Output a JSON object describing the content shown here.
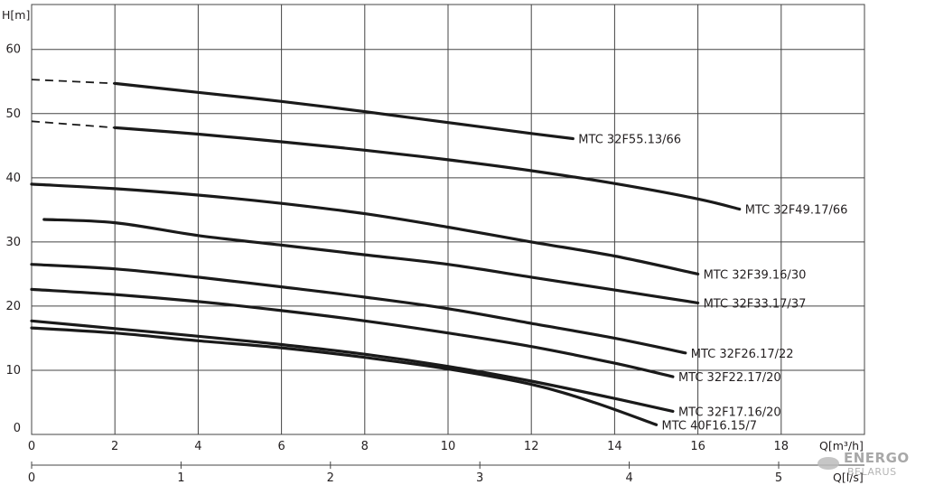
{
  "chart_data": {
    "type": "line",
    "ylabel": "H[m]",
    "xlabel": "Q[m³/h]",
    "x2label": "Q[l/s]",
    "xlim": [
      0,
      20
    ],
    "ylim": [
      0,
      67
    ],
    "x2lim": [
      0,
      5.56
    ],
    "xticks": [
      0,
      2,
      4,
      6,
      8,
      10,
      12,
      14,
      16,
      18
    ],
    "yticks": [
      0,
      10,
      20,
      30,
      40,
      50,
      60
    ],
    "x2ticks": [
      0,
      1,
      2,
      3,
      4,
      5
    ],
    "grid": true,
    "series": [
      {
        "name": "MTC 32F55.13/66",
        "dashed_to": 2,
        "points": [
          [
            0,
            55.3
          ],
          [
            2,
            54.7
          ],
          [
            4,
            53.3
          ],
          [
            6,
            51.9
          ],
          [
            8,
            50.3
          ],
          [
            10,
            48.6
          ],
          [
            12,
            46.9
          ],
          [
            13,
            46.1
          ]
        ]
      },
      {
        "name": "MTC 32F49.17/66",
        "dashed_to": 2,
        "points": [
          [
            0,
            48.8
          ],
          [
            2,
            47.8
          ],
          [
            4,
            46.8
          ],
          [
            6,
            45.6
          ],
          [
            8,
            44.3
          ],
          [
            10,
            42.8
          ],
          [
            12,
            41.1
          ],
          [
            14,
            39.1
          ],
          [
            16,
            36.7
          ],
          [
            17,
            35.1
          ]
        ]
      },
      {
        "name": "MTC 32F39.16/30",
        "points": [
          [
            0,
            39.0
          ],
          [
            2,
            38.3
          ],
          [
            4,
            37.3
          ],
          [
            6,
            36.0
          ],
          [
            8,
            34.4
          ],
          [
            10,
            32.3
          ],
          [
            12,
            30.0
          ],
          [
            14,
            27.8
          ],
          [
            16,
            25.0
          ]
        ]
      },
      {
        "name": "MTC 32F33.17/37",
        "points": [
          [
            0.3,
            33.5
          ],
          [
            2,
            33.0
          ],
          [
            4,
            31.0
          ],
          [
            6,
            29.5
          ],
          [
            8,
            28.0
          ],
          [
            10,
            26.5
          ],
          [
            12,
            24.5
          ],
          [
            14,
            22.5
          ],
          [
            16,
            20.5
          ]
        ]
      },
      {
        "name": "MTC 32F26.17/22",
        "points": [
          [
            0,
            26.5
          ],
          [
            2,
            25.8
          ],
          [
            4,
            24.5
          ],
          [
            6,
            23.0
          ],
          [
            8,
            21.4
          ],
          [
            10,
            19.6
          ],
          [
            12,
            17.3
          ],
          [
            14,
            15.0
          ],
          [
            15.7,
            12.7
          ]
        ]
      },
      {
        "name": "MTC 32F22.17/20",
        "points": [
          [
            0,
            22.6
          ],
          [
            2,
            21.8
          ],
          [
            4,
            20.7
          ],
          [
            6,
            19.3
          ],
          [
            8,
            17.7
          ],
          [
            10,
            15.8
          ],
          [
            12,
            13.7
          ],
          [
            14,
            11.1
          ],
          [
            15.4,
            9.0
          ]
        ]
      },
      {
        "name": "MTC 32F17.16/20",
        "points": [
          [
            0,
            17.7
          ],
          [
            2,
            16.5
          ],
          [
            4,
            15.3
          ],
          [
            6,
            14.0
          ],
          [
            8,
            12.5
          ],
          [
            10,
            10.6
          ],
          [
            12,
            8.3
          ],
          [
            14,
            5.6
          ],
          [
            15.4,
            3.6
          ]
        ]
      },
      {
        "name": "MTC 40F16.15/7",
        "points": [
          [
            0,
            16.6
          ],
          [
            2,
            15.8
          ],
          [
            4,
            14.6
          ],
          [
            6,
            13.5
          ],
          [
            8,
            12.0
          ],
          [
            10,
            10.2
          ],
          [
            12,
            7.8
          ],
          [
            13.5,
            5.0
          ],
          [
            15,
            1.5
          ]
        ]
      }
    ],
    "labels_at": [
      {
        "text": "MTC 32F55.13/66",
        "x": 13.0,
        "y": 46.1
      },
      {
        "text": "MTC 32F49.17/66",
        "x": 17.0,
        "y": 35.1
      },
      {
        "text": "MTC 32F39.16/30",
        "x": 16.0,
        "y": 25.0
      },
      {
        "text": "MTC 32F33.17/37",
        "x": 16.0,
        "y": 20.5
      },
      {
        "text": "MTC 32F26.17/22",
        "x": 15.7,
        "y": 12.7
      },
      {
        "text": "MTC 32F22.17/20",
        "x": 15.4,
        "y": 9.0
      },
      {
        "text": "MTC 32F17.16/20",
        "x": 15.4,
        "y": 3.6
      },
      {
        "text": "MTC 40F16.15/7",
        "x": 15.0,
        "y": 1.5
      }
    ]
  },
  "watermark": {
    "line1": "ENERGO",
    "line2": "BELARUS"
  }
}
